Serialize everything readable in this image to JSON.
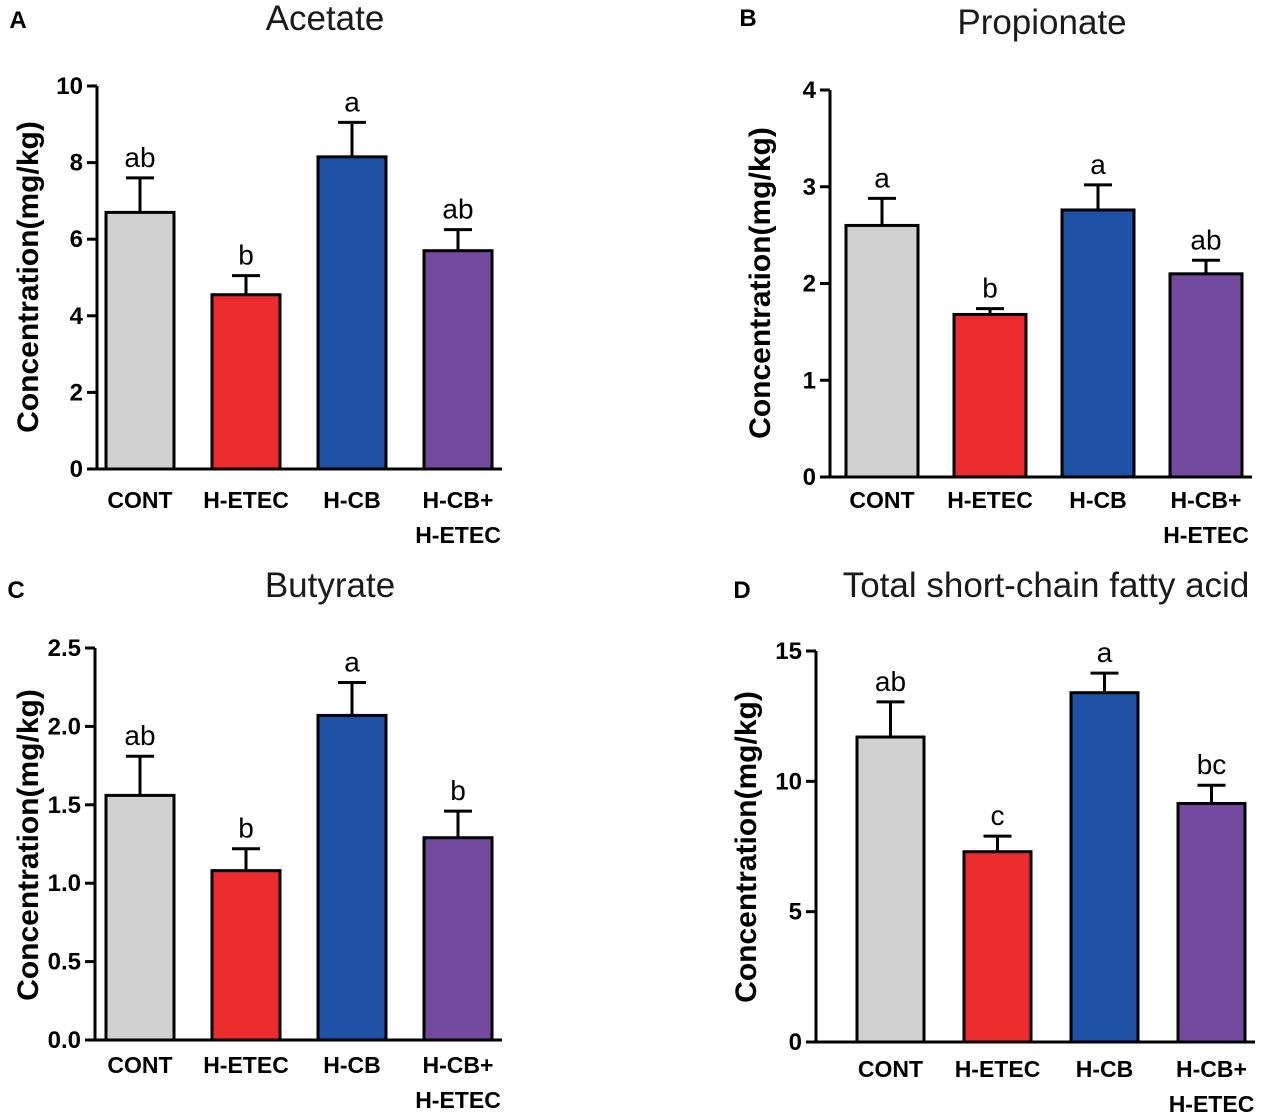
{
  "chart_data": [
    {
      "panel": "A",
      "type": "bar",
      "title": "Acetate",
      "ylabel": "Concentration(mg/kg)",
      "categories": [
        [
          "CONT"
        ],
        [
          "H-ETEC"
        ],
        [
          "H-CB"
        ],
        [
          "H-CB+",
          "H-ETEC"
        ]
      ],
      "values": [
        6.7,
        4.55,
        8.15,
        5.7
      ],
      "errors": [
        0.9,
        0.5,
        0.9,
        0.55
      ],
      "significance": [
        "ab",
        "b",
        "a",
        "ab"
      ],
      "colors": [
        "#cfd0cf",
        "#ec2b2f",
        "#1f52a6",
        "#734a9e"
      ],
      "ylim": [
        0,
        10
      ],
      "yticks": [
        0,
        2,
        4,
        6,
        8,
        10
      ],
      "ytick_labels": [
        "0",
        "2",
        "4",
        "6",
        "8",
        "10"
      ]
    },
    {
      "panel": "B",
      "type": "bar",
      "title": "Propionate",
      "ylabel": "Concentration(mg/kg)",
      "categories": [
        [
          "CONT"
        ],
        [
          "H-ETEC"
        ],
        [
          "H-CB"
        ],
        [
          "H-CB+",
          "H-ETEC"
        ]
      ],
      "values": [
        2.6,
        1.68,
        2.76,
        2.1
      ],
      "errors": [
        0.28,
        0.06,
        0.26,
        0.14
      ],
      "significance": [
        "a",
        "b",
        "a",
        "ab"
      ],
      "colors": [
        "#cfd0cf",
        "#ec2b2f",
        "#1f52a6",
        "#734a9e"
      ],
      "ylim": [
        0,
        4
      ],
      "yticks": [
        0,
        1,
        2,
        3,
        4
      ],
      "ytick_labels": [
        "0",
        "1",
        "2",
        "3",
        "4"
      ]
    },
    {
      "panel": "C",
      "type": "bar",
      "title": "Butyrate",
      "ylabel": "Concentration(mg/kg)",
      "categories": [
        [
          "CONT"
        ],
        [
          "H-ETEC"
        ],
        [
          "H-CB"
        ],
        [
          "H-CB+",
          "H-ETEC"
        ]
      ],
      "values": [
        1.56,
        1.08,
        2.07,
        1.29
      ],
      "errors": [
        0.25,
        0.14,
        0.21,
        0.17
      ],
      "significance": [
        "ab",
        "b",
        "a",
        "b"
      ],
      "colors": [
        "#cfd0cf",
        "#ec2b2f",
        "#1f52a6",
        "#734a9e"
      ],
      "ylim": [
        0,
        2.5
      ],
      "yticks": [
        0,
        0.5,
        1.0,
        1.5,
        2.0,
        2.5
      ],
      "ytick_labels": [
        "0.0",
        "0.5",
        "1.0",
        "1.5",
        "2.0",
        "2.5"
      ]
    },
    {
      "panel": "D",
      "type": "bar",
      "title": "Total short-chain fatty acid",
      "ylabel": "Concentration(mg/kg)",
      "categories": [
        [
          "CONT"
        ],
        [
          "H-ETEC"
        ],
        [
          "H-CB"
        ],
        [
          "H-CB+",
          "H-ETEC"
        ]
      ],
      "values": [
        11.7,
        7.3,
        13.4,
        9.15
      ],
      "errors": [
        1.35,
        0.6,
        0.75,
        0.7
      ],
      "significance": [
        "ab",
        "c",
        "a",
        "bc"
      ],
      "colors": [
        "#cfd0cf",
        "#ec2b2f",
        "#1f52a6",
        "#734a9e"
      ],
      "ylim": [
        0,
        15
      ],
      "yticks": [
        0,
        5,
        10,
        15
      ],
      "ytick_labels": [
        "0",
        "5",
        "10",
        "15"
      ]
    }
  ]
}
